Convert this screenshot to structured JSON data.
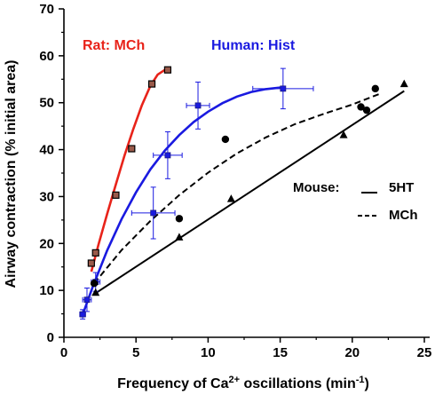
{
  "chart_data": {
    "type": "scatter",
    "title": "",
    "xlabel_main": "Frequency of Ca",
    "xlabel_sup": "2+",
    "xlabel_post": " oscillations (min",
    "xlabel_unit_sup": "-1",
    "xlabel_end": ")",
    "ylabel": "Airway contraction (% initial area)",
    "xlim": [
      0,
      25
    ],
    "ylim": [
      0,
      70
    ],
    "xticks": [
      "0",
      "5",
      "10",
      "15",
      "20",
      "25"
    ],
    "yticks": [
      "0",
      "10",
      "20",
      "30",
      "40",
      "50",
      "60",
      "70"
    ],
    "series": [
      {
        "label": "Rat: MCh",
        "color": "#e8231a",
        "marker": "square-red",
        "x": [
          1.9,
          2.2,
          3.6,
          4.7,
          6.1,
          7.2
        ],
        "y": [
          15.8,
          18.0,
          30.3,
          40.2,
          54.0,
          57.0
        ],
        "fit_x": [
          1.9,
          2.4,
          3.0,
          3.6,
          4.2,
          4.8,
          5.4,
          6.0,
          6.5,
          7.0,
          7.3
        ],
        "fit_y": [
          14.0,
          19.8,
          26.3,
          32.6,
          38.7,
          44.3,
          49.4,
          53.6,
          56.0,
          57.0,
          57.1
        ]
      },
      {
        "label": "Human: Hist",
        "color": "#1a1ae0",
        "marker": "square-blue",
        "x": [
          1.3,
          1.6,
          2.2,
          6.2,
          7.2,
          9.3,
          15.2
        ],
        "y": [
          4.9,
          8.0,
          11.8,
          26.5,
          38.8,
          49.4,
          53.0
        ],
        "xerr": [
          0.2,
          0.3,
          0.3,
          1.5,
          1.0,
          0.8,
          2.1
        ],
        "yerr": [
          1.0,
          2.5,
          2.0,
          5.5,
          5.0,
          5.0,
          4.3
        ],
        "fit_x": [
          1.3,
          2.0,
          3.0,
          4.0,
          5.0,
          6.0,
          7.0,
          8.0,
          9.0,
          10.0,
          11.0,
          12.0,
          13.0,
          14.0,
          15.2
        ],
        "fit_y": [
          4.8,
          10.8,
          18.5,
          25.2,
          30.9,
          35.8,
          39.8,
          43.1,
          45.9,
          48.1,
          49.9,
          51.3,
          52.3,
          52.9,
          53.3
        ]
      },
      {
        "label": "Mouse: MCh",
        "color": "#000000",
        "marker": "circle",
        "x": [
          2.1,
          8.0,
          11.2,
          20.6,
          21.0,
          21.6
        ],
        "y": [
          11.5,
          25.3,
          42.2,
          49.1,
          48.4,
          53.0
        ],
        "fit_x": [
          2.1,
          4.0,
          6.0,
          8.0,
          10.0,
          12.0,
          14.0,
          16.0,
          18.0,
          20.0,
          21.9
        ],
        "fit_y": [
          11.5,
          18.6,
          24.8,
          30.3,
          35.1,
          39.2,
          42.6,
          45.4,
          47.6,
          49.6,
          51.9
        ]
      },
      {
        "label": "Mouse: 5HT",
        "color": "#000000",
        "marker": "triangle",
        "x": [
          2.2,
          8.0,
          11.6,
          19.4,
          23.6
        ],
        "y": [
          9.5,
          21.3,
          29.5,
          43.1,
          54.0
        ],
        "fit_x": [
          2.2,
          23.6
        ],
        "fit_y": [
          9.4,
          52.5
        ]
      }
    ],
    "annotations": {
      "rat_label": "Rat: MCh",
      "human_label": "Human: Hist",
      "mouse_label": "Mouse:",
      "legend_solid": "5HT",
      "legend_dashed": "MCh"
    }
  }
}
